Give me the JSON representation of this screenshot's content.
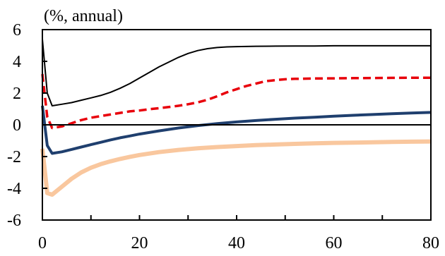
{
  "chart_data": {
    "type": "line",
    "title": "",
    "unit_label": "(%, annual)",
    "xlabel": "",
    "ylabel": "",
    "xlim": [
      0,
      80
    ],
    "ylim": [
      -6,
      6
    ],
    "x_ticks": [
      0,
      20,
      40,
      60,
      80
    ],
    "y_ticks": [
      -6,
      -4,
      -2,
      0,
      2,
      4,
      6
    ],
    "x_tick_labels": [
      "0",
      "20",
      "40",
      "60",
      "80"
    ],
    "y_tick_labels": [
      "-6",
      "-4",
      "-2",
      "0",
      "2",
      "4",
      "6"
    ],
    "grid": false,
    "zero_line": true,
    "series": [
      {
        "color": "#000000",
        "style": "solid",
        "width": "thin",
        "x": [
          0,
          1,
          2,
          4,
          6,
          8,
          10,
          12,
          14,
          16,
          18,
          20,
          22,
          24,
          26,
          28,
          30,
          32,
          34,
          36,
          38,
          40,
          44,
          48,
          52,
          56,
          60,
          64,
          68,
          72,
          76,
          80
        ],
        "values": [
          5.4,
          2.0,
          1.2,
          1.3,
          1.4,
          1.55,
          1.7,
          1.85,
          2.05,
          2.3,
          2.6,
          2.95,
          3.3,
          3.65,
          3.95,
          4.25,
          4.5,
          4.68,
          4.8,
          4.87,
          4.91,
          4.93,
          4.95,
          4.96,
          4.97,
          4.97,
          4.98,
          4.98,
          4.98,
          4.98,
          4.98,
          4.98
        ]
      },
      {
        "color": "#E8000B",
        "style": "dashed",
        "width": "medium",
        "x": [
          0,
          1,
          2,
          4,
          6,
          8,
          10,
          12,
          14,
          16,
          18,
          20,
          22,
          24,
          26,
          28,
          30,
          32,
          34,
          36,
          38,
          40,
          42,
          44,
          46,
          48,
          50,
          52,
          56,
          60,
          64,
          68,
          72,
          76,
          80
        ],
        "values": [
          3.2,
          0.5,
          -0.2,
          -0.1,
          0.1,
          0.3,
          0.45,
          0.55,
          0.65,
          0.75,
          0.85,
          0.9,
          0.98,
          1.05,
          1.12,
          1.2,
          1.3,
          1.42,
          1.58,
          1.8,
          2.05,
          2.25,
          2.45,
          2.6,
          2.75,
          2.82,
          2.87,
          2.9,
          2.92,
          2.93,
          2.94,
          2.95,
          2.96,
          2.97,
          2.97
        ]
      },
      {
        "color": "#1F3F6E",
        "style": "solid",
        "width": "thick",
        "x": [
          0,
          1,
          2,
          4,
          6,
          8,
          10,
          12,
          14,
          16,
          18,
          20,
          24,
          28,
          32,
          36,
          40,
          44,
          48,
          52,
          56,
          60,
          64,
          68,
          72,
          76,
          80
        ],
        "values": [
          1.2,
          -1.3,
          -1.8,
          -1.7,
          -1.55,
          -1.4,
          -1.25,
          -1.1,
          -0.95,
          -0.82,
          -0.7,
          -0.58,
          -0.38,
          -0.2,
          -0.05,
          0.08,
          0.18,
          0.27,
          0.35,
          0.42,
          0.48,
          0.54,
          0.6,
          0.65,
          0.7,
          0.74,
          0.78
        ]
      },
      {
        "color": "#F9C79E",
        "style": "solid",
        "width": "extra-thick",
        "x": [
          0,
          1,
          2,
          4,
          6,
          8,
          10,
          12,
          14,
          16,
          18,
          20,
          24,
          28,
          32,
          36,
          40,
          44,
          48,
          52,
          56,
          60,
          64,
          68,
          72,
          76,
          80
        ],
        "values": [
          -1.5,
          -4.3,
          -4.4,
          -3.9,
          -3.4,
          -3.0,
          -2.7,
          -2.48,
          -2.3,
          -2.15,
          -2.02,
          -1.9,
          -1.72,
          -1.58,
          -1.48,
          -1.4,
          -1.34,
          -1.28,
          -1.24,
          -1.2,
          -1.17,
          -1.14,
          -1.12,
          -1.1,
          -1.08,
          -1.06,
          -1.05
        ]
      }
    ]
  }
}
